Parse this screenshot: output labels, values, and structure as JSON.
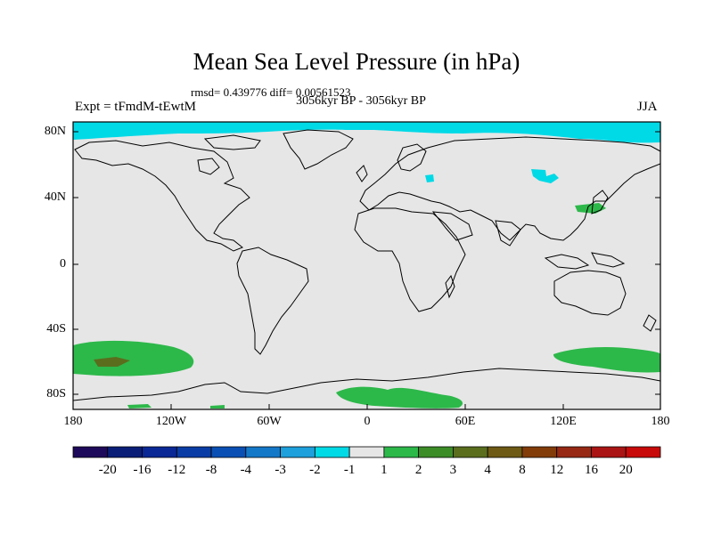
{
  "title": "Mean Sea Level Pressure (in hPa)",
  "stats": "rmsd= 0.439776 diff= 0.00561523",
  "period": "3056kyr BP - 3056kyr BP",
  "experiment": "Expt = tFmdM-tEwtM",
  "season": "JJA",
  "map": {
    "background_color": "#e6e6e6",
    "lat_ticks": [
      "80N",
      "40N",
      "0",
      "40S",
      "80S"
    ],
    "lon_ticks": [
      "180",
      "120W",
      "60W",
      "0",
      "60E",
      "120E",
      "180"
    ]
  },
  "anomaly_regions": [
    {
      "name": "arctic-negative-band",
      "color": "#00d9e6",
      "value": "-2 to -1"
    },
    {
      "name": "east-asia-negative-patch",
      "color": "#00d9e6",
      "value": "-2 to -1"
    },
    {
      "name": "southern-ocean-positive-pacific",
      "color": "#2db84a",
      "value": "1 to 2"
    },
    {
      "name": "southern-ocean-positive-core",
      "color": "#5a6e1e",
      "value": "4 to 8"
    },
    {
      "name": "antarctic-positive-atlantic",
      "color": "#2db84a",
      "value": "1 to 2"
    },
    {
      "name": "southern-ocean-positive-australia",
      "color": "#2db84a",
      "value": "1 to 2"
    },
    {
      "name": "japan-positive-patch",
      "color": "#2db84a",
      "value": "1 to 2"
    }
  ],
  "colorbar": {
    "colors": [
      "#1e0a5a",
      "#0a1e78",
      "#0a2896",
      "#0a3ca5",
      "#0a50b4",
      "#1478c8",
      "#1ea0dc",
      "#00d9e6",
      "#e6e6e6",
      "#2db84a",
      "#3c8c28",
      "#5a6e1e",
      "#6e5a14",
      "#823c0a",
      "#962814",
      "#aa1414",
      "#c80a0a"
    ],
    "labels": [
      "-20",
      "-16",
      "-12",
      "-8",
      "-4",
      "-3",
      "-2",
      "-1",
      "1",
      "2",
      "3",
      "4",
      "8",
      "12",
      "16",
      "20"
    ]
  }
}
